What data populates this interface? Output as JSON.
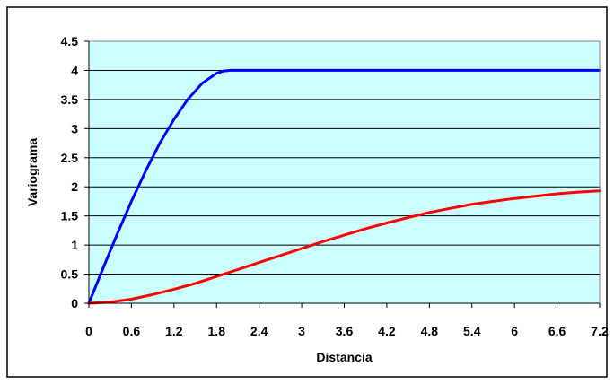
{
  "chart_data": {
    "type": "line",
    "title": "",
    "xlabel": "Distancia",
    "ylabel": "Variograma",
    "xlim": [
      0,
      7.2
    ],
    "ylim": [
      0,
      4.5
    ],
    "x_ticks": [
      "0",
      "0.6",
      "1.2",
      "1.8",
      "2.4",
      "3",
      "3.6",
      "4.2",
      "4.8",
      "5.4",
      "6",
      "6.6",
      "7.2"
    ],
    "y_ticks": [
      "0",
      "0.5",
      "1",
      "1.5",
      "2",
      "2.5",
      "3",
      "3.5",
      "4",
      "4.5"
    ],
    "grid": true,
    "legend": "none",
    "colors": {
      "plot_background": "#ccffff",
      "grid": "#000000",
      "frame": "#000000"
    },
    "series": [
      {
        "color": "#0000ff",
        "x": [
          0,
          0.2,
          0.4,
          0.6,
          0.8,
          1.0,
          1.2,
          1.4,
          1.6,
          1.8,
          1.9,
          2.0,
          2.4,
          3.0,
          4.0,
          5.0,
          6.0,
          7.2
        ],
        "y": [
          0,
          0.6,
          1.19,
          1.75,
          2.27,
          2.75,
          3.16,
          3.51,
          3.78,
          3.95,
          3.99,
          4,
          4,
          4,
          4,
          4,
          4,
          4
        ]
      },
      {
        "color": "#ff0000",
        "x": [
          0,
          0.3,
          0.6,
          0.9,
          1.2,
          1.5,
          1.8,
          2.1,
          2.4,
          2.7,
          3.0,
          3.3,
          3.6,
          3.9,
          4.2,
          4.5,
          4.8,
          5.1,
          5.4,
          5.7,
          6.0,
          6.3,
          6.6,
          6.9,
          7.2
        ],
        "y": [
          0,
          0.02,
          0.07,
          0.15,
          0.24,
          0.34,
          0.46,
          0.58,
          0.7,
          0.82,
          0.94,
          1.06,
          1.17,
          1.28,
          1.38,
          1.47,
          1.56,
          1.63,
          1.7,
          1.75,
          1.8,
          1.84,
          1.88,
          1.91,
          1.93
        ]
      }
    ]
  }
}
